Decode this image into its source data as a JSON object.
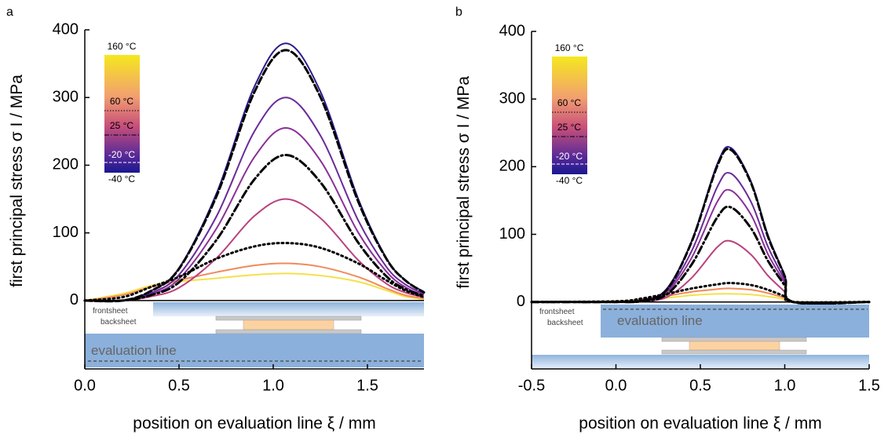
{
  "chart_data": [
    {
      "type": "line",
      "panel_label": "a",
      "xlabel": "position on evaluation line ξ / mm",
      "ylabel": "first principal stress σ I / MPa",
      "xlim": [
        0,
        1.8
      ],
      "ylim": [
        -101,
        400
      ],
      "xticks": [
        {
          "value": 0,
          "label": "0.0"
        },
        0.5,
        {
          "value": 1,
          "label": "1.0"
        },
        1.5
      ],
      "yticks": [
        0,
        100,
        200,
        300,
        400
      ],
      "colorbar_labels": [
        "160 °C",
        "60 °C",
        "25 °C",
        "-20 °C",
        "-40 °C"
      ],
      "schematic": {
        "front": "frontsheet",
        "back": "backsheet",
        "line": "evaluation line"
      },
      "x": [
        0,
        0.2,
        0.35,
        0.5,
        0.7,
        0.9,
        1.07,
        1.25,
        1.45,
        1.6,
        1.7,
        1.8
      ],
      "series": [
        {
          "color": "#f5e04a",
          "values": [
            0,
            10,
            22,
            28,
            33,
            38,
            40,
            37,
            28,
            15,
            6,
            2
          ]
        },
        {
          "color": "#f08a5a",
          "values": [
            0,
            8,
            20,
            30,
            42,
            52,
            55,
            50,
            35,
            18,
            8,
            3
          ]
        },
        {
          "color": "#b8427f",
          "values": [
            0,
            0,
            6,
            19,
            63,
            125,
            150,
            122,
            60,
            25,
            12,
            5
          ]
        },
        {
          "color": "#8a3098",
          "values": [
            0,
            0,
            9,
            32,
            107,
            212,
            255,
            207,
            101,
            43,
            20,
            8
          ]
        },
        {
          "color": "#6a2a9a",
          "values": [
            0,
            0,
            11,
            38,
            125,
            250,
            300,
            244,
            119,
            50,
            24,
            10
          ]
        },
        {
          "color": "#2b1b8c",
          "values": [
            0,
            0,
            14,
            48,
            159,
            316,
            380,
            309,
            151,
            63,
            30,
            13
          ]
        },
        {
          "color": "#000000",
          "dash": "dot",
          "values": [
            0,
            5,
            20,
            35,
            62,
            80,
            85,
            78,
            55,
            30,
            15,
            5
          ]
        },
        {
          "color": "#000000",
          "dash": "dashdot",
          "values": [
            0,
            0,
            8,
            27,
            90,
            179,
            215,
            175,
            86,
            36,
            17,
            7
          ]
        },
        {
          "color": "#000000",
          "dash": "dash",
          "values": [
            0,
            0,
            14,
            47,
            155,
            308,
            370,
            301,
            147,
            62,
            30,
            12
          ]
        }
      ]
    },
    {
      "type": "line",
      "panel_label": "b",
      "xlabel": "position on evaluation line ξ / mm",
      "ylabel": "first principal stress σ I / MPa",
      "xlim": [
        -0.5,
        1.5
      ],
      "ylim": [
        -99,
        400
      ],
      "xticks": [
        -0.5,
        {
          "value": 0,
          "label": "0.0"
        },
        0.5,
        {
          "value": 1,
          "label": "1.0"
        },
        1.5
      ],
      "yticks": [
        0,
        100,
        200,
        300,
        400
      ],
      "colorbar_labels": [
        "160 °C",
        "60 °C",
        "25 °C",
        "-20 °C",
        "-40 °C"
      ],
      "schematic": {
        "front": "frontsheet",
        "back": "backsheet",
        "line": "evaluation line"
      },
      "x": [
        -0.5,
        0,
        0.15,
        0.3,
        0.45,
        0.6,
        0.68,
        0.8,
        0.9,
        1.0,
        1.05,
        1.5
      ],
      "series": [
        {
          "color": "#f5e04a",
          "values": [
            0,
            1,
            3,
            6,
            10,
            12,
            12,
            11,
            8,
            4,
            0,
            0
          ]
        },
        {
          "color": "#f08a5a",
          "values": [
            0,
            1,
            4,
            9,
            15,
            19,
            20,
            18,
            13,
            6,
            0,
            0
          ]
        },
        {
          "color": "#b8427f",
          "values": [
            0,
            0,
            1,
            7,
            36,
            81,
            90,
            70,
            39,
            15,
            0,
            0
          ]
        },
        {
          "color": "#8a3098",
          "values": [
            0,
            0,
            1,
            14,
            66,
            148,
            165,
            129,
            71,
            28,
            0,
            0
          ]
        },
        {
          "color": "#6a2a9a",
          "values": [
            0,
            0,
            2,
            16,
            76,
            170,
            190,
            148,
            82,
            32,
            0,
            0
          ]
        },
        {
          "color": "#2b1b8c",
          "values": [
            0,
            0,
            2,
            19,
            91,
            204,
            228,
            178,
            99,
            39,
            0,
            0
          ]
        },
        {
          "color": "#000000",
          "dash": "dot",
          "values": [
            0,
            1,
            5,
            12,
            20,
            26,
            28,
            25,
            18,
            8,
            0,
            0
          ]
        },
        {
          "color": "#000000",
          "dash": "dashdot",
          "values": [
            0,
            0,
            1,
            11,
            56,
            125,
            140,
            109,
            61,
            24,
            0,
            0
          ]
        },
        {
          "color": "#000000",
          "dash": "dash",
          "values": [
            0,
            0,
            2,
            18,
            90,
            201,
            225,
            176,
            97,
            38,
            0,
            0
          ]
        }
      ]
    }
  ]
}
